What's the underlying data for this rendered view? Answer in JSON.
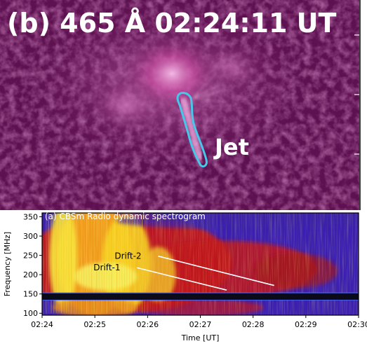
{
  "top_panel": {
    "title": "(b) 465 Å 02:24:11 UT",
    "jet_label": "Jet",
    "colors": {
      "background": "#5e1150",
      "highlight": "#f3b3e8",
      "contour": "#47c7ea"
    }
  },
  "chart_data": {
    "type": "heatmap",
    "title": "(a) CBSm Radio dynamic spectrogram",
    "xlabel": "Time [UT]",
    "ylabel": "Frequency [MHz]",
    "x_ticks": [
      "02:24",
      "02:25",
      "02:26",
      "02:27",
      "02:28",
      "02:29",
      "02:30"
    ],
    "y_ticks": [
      100,
      150,
      200,
      250,
      300,
      350
    ],
    "xlim": [
      "02:24",
      "02:30"
    ],
    "ylim": [
      95,
      360
    ],
    "annotations": [
      {
        "label": "Drift-2",
        "start": {
          "time": "02:26.2",
          "freq": 248
        },
        "end": {
          "time": "02:28.4",
          "freq": 172
        }
      },
      {
        "label": "Drift-1",
        "start": {
          "time": "02:25.8",
          "freq": 218
        },
        "end": {
          "time": "02:27.5",
          "freq": 160
        }
      }
    ]
  }
}
